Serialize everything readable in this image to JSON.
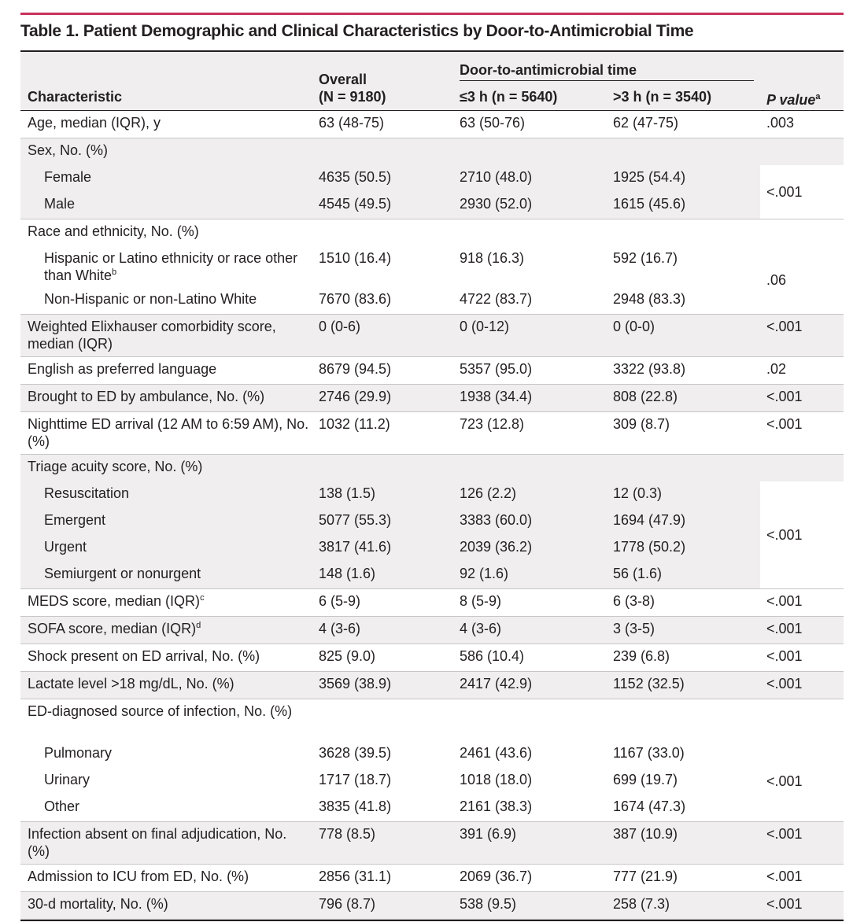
{
  "title": "Table 1. Patient Demographic and Clinical Characteristics by Door-to-Antimicrobial Time",
  "headers": {
    "characteristic": "Characteristic",
    "overall_line1": "Overall",
    "overall_line2": "(N = 9180)",
    "group": "Door-to-antimicrobial time",
    "le3h": "≤3 h (n = 5640)",
    "gt3h": ">3 h (n = 3540)",
    "pvalue": "P value",
    "pvalue_fn": "a"
  },
  "rows": [
    {
      "label": "Age, median (IQR), y",
      "overall": "63 (48-75)",
      "le3h": "63 (50-76)",
      "gt3h": "62 (47-75)",
      "p": ".003"
    },
    {
      "label": "Sex, No. (%)"
    },
    {
      "label": "Female",
      "indent": true,
      "overall": "4635 (50.5)",
      "le3h": "2710 (48.0)",
      "gt3h": "1925 (54.4)"
    },
    {
      "label": "Male",
      "indent": true,
      "overall": "4545 (49.5)",
      "le3h": "2930 (52.0)",
      "gt3h": "1615 (45.6)"
    },
    {
      "label": "Race and ethnicity, No. (%)"
    },
    {
      "label": "Hispanic or Latino ethnicity or race other than White",
      "fn": "b",
      "indent": true,
      "overall": "1510 (16.4)",
      "le3h": "918 (16.3)",
      "gt3h": "592 (16.7)"
    },
    {
      "label": "Non-Hispanic or non-Latino White",
      "indent": true,
      "overall": "7670 (83.6)",
      "le3h": "4722 (83.7)",
      "gt3h": "2948 (83.3)"
    },
    {
      "label": "Weighted Elixhauser comorbidity score, median (IQR)",
      "overall": "0 (0-6)",
      "le3h": "0 (0-12)",
      "gt3h": "0 (0-0)",
      "p": "<.001"
    },
    {
      "label": "English as preferred language",
      "overall": "8679 (94.5)",
      "le3h": "5357 (95.0)",
      "gt3h": "3322 (93.8)",
      "p": ".02"
    },
    {
      "label": "Brought to ED by ambulance, No. (%)",
      "overall": "2746 (29.9)",
      "le3h": "1938 (34.4)",
      "gt3h": "808 (22.8)",
      "p": "<.001"
    },
    {
      "label": "Nighttime ED arrival (12 AM to 6:59 AM), No. (%)",
      "overall": "1032 (11.2)",
      "le3h": "723 (12.8)",
      "gt3h": "309 (8.7)",
      "p": "<.001"
    },
    {
      "label": "Triage acuity score, No. (%)"
    },
    {
      "label": "Resuscitation",
      "indent": true,
      "overall": "138 (1.5)",
      "le3h": "126 (2.2)",
      "gt3h": "12 (0.3)"
    },
    {
      "label": "Emergent",
      "indent": true,
      "overall": "5077 (55.3)",
      "le3h": "3383 (60.0)",
      "gt3h": "1694 (47.9)"
    },
    {
      "label": "Urgent",
      "indent": true,
      "overall": "3817 (41.6)",
      "le3h": "2039 (36.2)",
      "gt3h": "1778 (50.2)"
    },
    {
      "label": "Semiurgent or nonurgent",
      "indent": true,
      "overall": "148 (1.6)",
      "le3h": "92 (1.6)",
      "gt3h": "56 (1.6)"
    },
    {
      "label": "MEDS score, median (IQR)",
      "fn": "c",
      "overall": "6 (5-9)",
      "le3h": "8 (5-9)",
      "gt3h": "6 (3-8)",
      "p": "<.001"
    },
    {
      "label": "SOFA score, median (IQR)",
      "fn": "d",
      "overall": "4 (3-6)",
      "le3h": "4 (3-6)",
      "gt3h": "3 (3-5)",
      "p": "<.001"
    },
    {
      "label": "Shock present on ED arrival, No. (%)",
      "overall": "825 (9.0)",
      "le3h": "586 (10.4)",
      "gt3h": "239 (6.8)",
      "p": "<.001"
    },
    {
      "label": "Lactate level >18 mg/dL, No. (%)",
      "overall": "3569 (38.9)",
      "le3h": "2417 (42.9)",
      "gt3h": "1152 (32.5)",
      "p": "<.001"
    },
    {
      "label": "ED-diagnosed source of infection, No. (%)"
    },
    {
      "label": "Pulmonary",
      "indent": true,
      "overall": "3628 (39.5)",
      "le3h": "2461 (43.6)",
      "gt3h": "1167 (33.0)"
    },
    {
      "label": "Urinary",
      "indent": true,
      "overall": "1717 (18.7)",
      "le3h": "1018 (18.0)",
      "gt3h": "699 (19.7)"
    },
    {
      "label": "Other",
      "indent": true,
      "overall": "3835 (41.8)",
      "le3h": "2161 (38.3)",
      "gt3h": "1674 (47.3)"
    },
    {
      "label": "Infection absent on final adjudication, No. (%)",
      "overall": "778 (8.5)",
      "le3h": "391 (6.9)",
      "gt3h": "387 (10.9)",
      "p": "<.001"
    },
    {
      "label": "Admission to ICU from ED, No. (%)",
      "overall": "2856 (31.1)",
      "le3h": "2069 (36.7)",
      "gt3h": "777 (21.9)",
      "p": "<.001"
    },
    {
      "label": "30-d mortality, No. (%)",
      "overall": "796 (8.7)",
      "le3h": "538 (9.5)",
      "gt3h": "258 (7.3)",
      "p": "<.001"
    }
  ],
  "group_pvalues": [
    {
      "value": "<.001"
    },
    {
      "value": ".06"
    },
    {
      "value": "<.001"
    },
    {
      "value": "<.001"
    }
  ]
}
